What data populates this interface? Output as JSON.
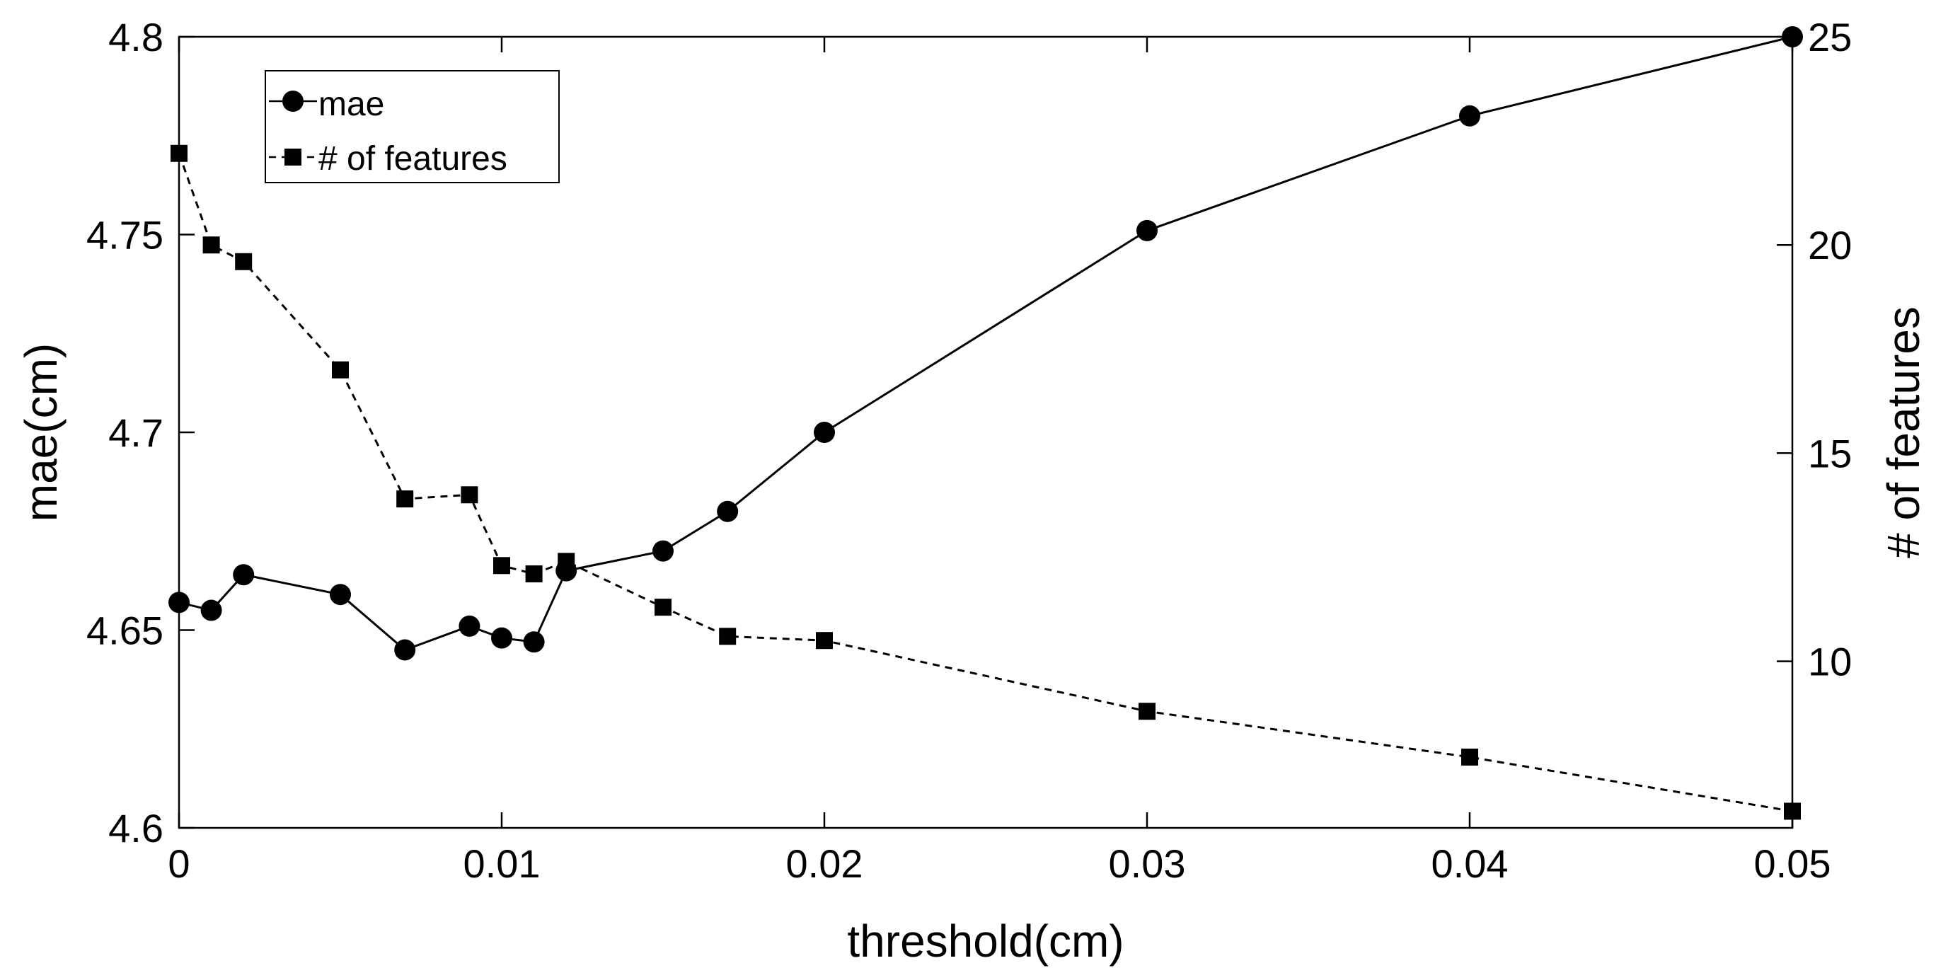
{
  "chart_data": {
    "type": "line",
    "title": "",
    "xlabel": "threshold(cm)",
    "ylabel": "mae(cm)",
    "y2label": "# of features",
    "xlim": [
      0,
      0.05
    ],
    "ylim": [
      4.6,
      4.8
    ],
    "y2lim": [
      6,
      25
    ],
    "xticks": [
      "0",
      "0.01",
      "0.02",
      "0.03",
      "0.04",
      "0.05"
    ],
    "yticks": [
      "4.6",
      "4.65",
      "4.7",
      "4.75",
      "4.8"
    ],
    "y2ticks": [
      "10",
      "15",
      "20",
      "25"
    ],
    "grid": false,
    "legend_position": "top-left",
    "series": [
      {
        "name": "mae",
        "axis": "left",
        "line_style": "solid",
        "marker": "circle",
        "x": [
          0,
          0.001,
          0.002,
          0.005,
          0.007,
          0.009,
          0.01,
          0.011,
          0.012,
          0.015,
          0.017,
          0.02,
          0.03,
          0.04,
          0.05
        ],
        "values": [
          4.657,
          4.655,
          4.664,
          4.659,
          4.645,
          4.651,
          4.648,
          4.647,
          4.665,
          4.67,
          4.68,
          4.7,
          4.751,
          4.78,
          4.8
        ]
      },
      {
        "name": "# of features",
        "axis": "right",
        "line_style": "dashed",
        "marker": "square",
        "x": [
          0,
          0.001,
          0.002,
          0.005,
          0.007,
          0.009,
          0.01,
          0.011,
          0.012,
          0.015,
          0.017,
          0.02,
          0.03,
          0.04,
          0.05
        ],
        "values": [
          22.2,
          20.0,
          19.6,
          17.0,
          13.9,
          14.0,
          12.3,
          12.1,
          12.4,
          11.3,
          10.6,
          10.5,
          8.8,
          7.7,
          6.4
        ]
      }
    ]
  }
}
